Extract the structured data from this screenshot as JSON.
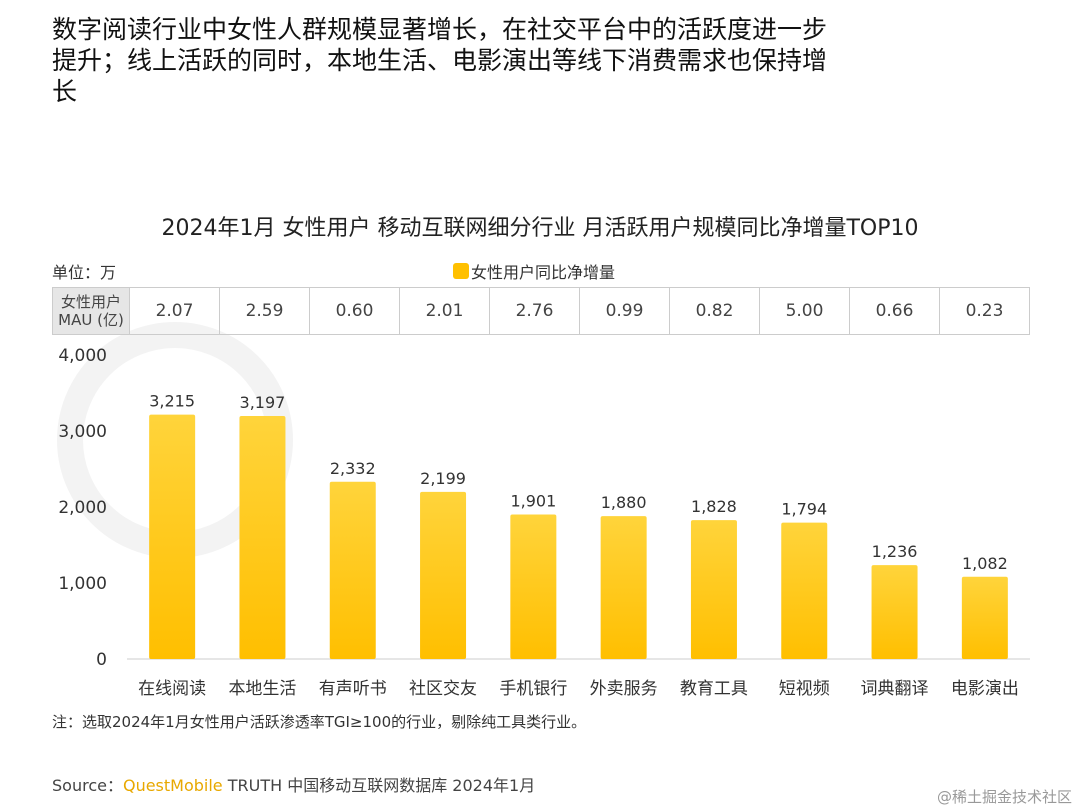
{
  "headline": "数字阅读行业中女性人群规模显著增长，在社交平台中的活跃度进一步提升；线上活跃的同时，本地生活、电影演出等线下消费需求也保持增长",
  "watermark": "QUEST MOBILE",
  "chart_data": {
    "type": "bar",
    "title": "2024年1月 女性用户 移动互联网细分行业 月活跃用户规模同比净增量TOP10",
    "unit": "单位：万",
    "categories": [
      "在线阅读",
      "本地生活",
      "有声听书",
      "社区交友",
      "手机银行",
      "外卖服务",
      "教育工具",
      "短视频",
      "词典翻译",
      "电影演出"
    ],
    "series": [
      {
        "name": "女性用户同比净增量",
        "values": [
          3215,
          3197,
          2332,
          2199,
          1901,
          1880,
          1828,
          1794,
          1236,
          1082
        ],
        "color": "#ffc000"
      }
    ],
    "data_labels": [
      "3,215",
      "3,197",
      "2,332",
      "2,199",
      "1,901",
      "1,880",
      "1,828",
      "1,794",
      "1,236",
      "1,082"
    ],
    "ylim": [
      0,
      4000
    ],
    "yticks": [
      0,
      1000,
      2000,
      3000,
      4000
    ],
    "ytick_labels": [
      "0",
      "1,000",
      "2,000",
      "3,000",
      "4,000"
    ],
    "grid": false,
    "legend": "top-center",
    "table": {
      "header": "女性用户 MAU (亿)",
      "header_lines": [
        "女性用户",
        "MAU (亿)"
      ],
      "values": [
        "2.07",
        "2.59",
        "0.60",
        "2.01",
        "2.76",
        "0.99",
        "0.82",
        "5.00",
        "0.66",
        "0.23"
      ]
    }
  },
  "note": "注：选取2024年1月女性用户活跃渗透率TGI≥100的行业，剔除纯工具类行业。",
  "source": {
    "prefix": "Source：",
    "brand": "QuestMobile",
    "rest": " TRUTH 中国移动互联网数据库 2024年1月"
  },
  "credit": "@稀土掘金技术社区"
}
